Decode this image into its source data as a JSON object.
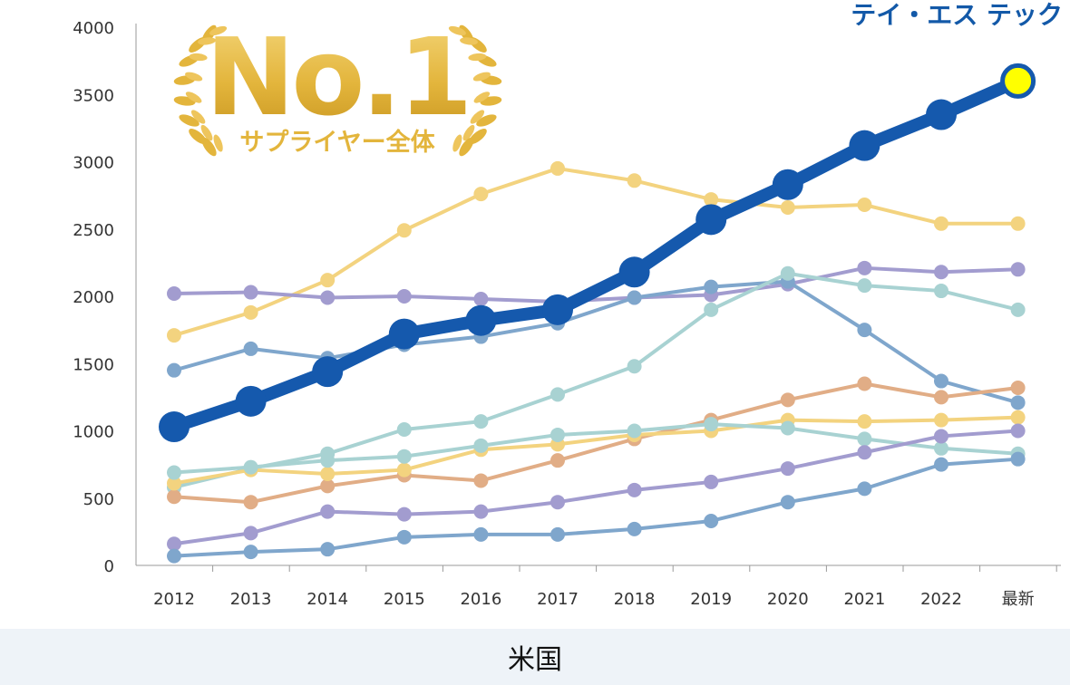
{
  "chart_data": {
    "type": "line",
    "categories": [
      "2012",
      "2013",
      "2014",
      "2015",
      "2016",
      "2017",
      "2018",
      "2019",
      "2020",
      "2021",
      "2022",
      "最新"
    ],
    "ylim": [
      0,
      4000
    ],
    "yticks": [
      0,
      500,
      1000,
      1500,
      2000,
      2500,
      3000,
      3500,
      4000
    ],
    "grid": false,
    "series": [
      {
        "name": "テイ・エス テック",
        "color": "#1559ad",
        "highlight": true,
        "values": [
          1030,
          1220,
          1440,
          1720,
          1820,
          1900,
          2180,
          2570,
          2830,
          3120,
          3350,
          3600
        ]
      },
      {
        "color": "#f3d37f",
        "values": [
          1710,
          1880,
          2120,
          2490,
          2760,
          2950,
          2860,
          2720,
          2660,
          2680,
          2540,
          2540
        ]
      },
      {
        "color": "#a29ccf",
        "values": [
          2020,
          2030,
          1990,
          2000,
          1980,
          1960,
          1990,
          2010,
          2090,
          2210,
          2180,
          2200
        ]
      },
      {
        "color": "#7fa6cc",
        "values": [
          1450,
          1610,
          1540,
          1640,
          1700,
          1800,
          1990,
          2070,
          2110,
          1750,
          1370,
          1210
        ]
      },
      {
        "color": "#a8d2d2",
        "values": [
          580,
          720,
          830,
          1010,
          1070,
          1270,
          1480,
          1900,
          2170,
          2080,
          2040,
          1900
        ]
      },
      {
        "color": "#e1ad86",
        "values": [
          510,
          470,
          590,
          670,
          630,
          780,
          940,
          1080,
          1230,
          1350,
          1250,
          1320
        ]
      },
      {
        "color": "#f3d37f",
        "values": [
          610,
          710,
          680,
          710,
          860,
          900,
          970,
          1000,
          1080,
          1070,
          1080,
          1100
        ]
      },
      {
        "color": "#a8d2d2",
        "values": [
          690,
          730,
          780,
          810,
          890,
          970,
          1000,
          1050,
          1020,
          940,
          870,
          830
        ]
      },
      {
        "color": "#a29ccf",
        "values": [
          160,
          240,
          400,
          380,
          400,
          470,
          560,
          620,
          720,
          840,
          960,
          1000
        ]
      },
      {
        "color": "#7fa6cc",
        "values": [
          70,
          100,
          120,
          210,
          230,
          230,
          270,
          330,
          470,
          570,
          750,
          790
        ]
      }
    ],
    "annotation": "テイ・エス テック",
    "badge": {
      "big_text": "No.1",
      "sub_text": "サプライヤー全体"
    },
    "colors": {
      "badge_gold": "#e3b53c",
      "highlight_last_point": "#ffff00"
    }
  },
  "footer": {
    "label": "米国"
  }
}
